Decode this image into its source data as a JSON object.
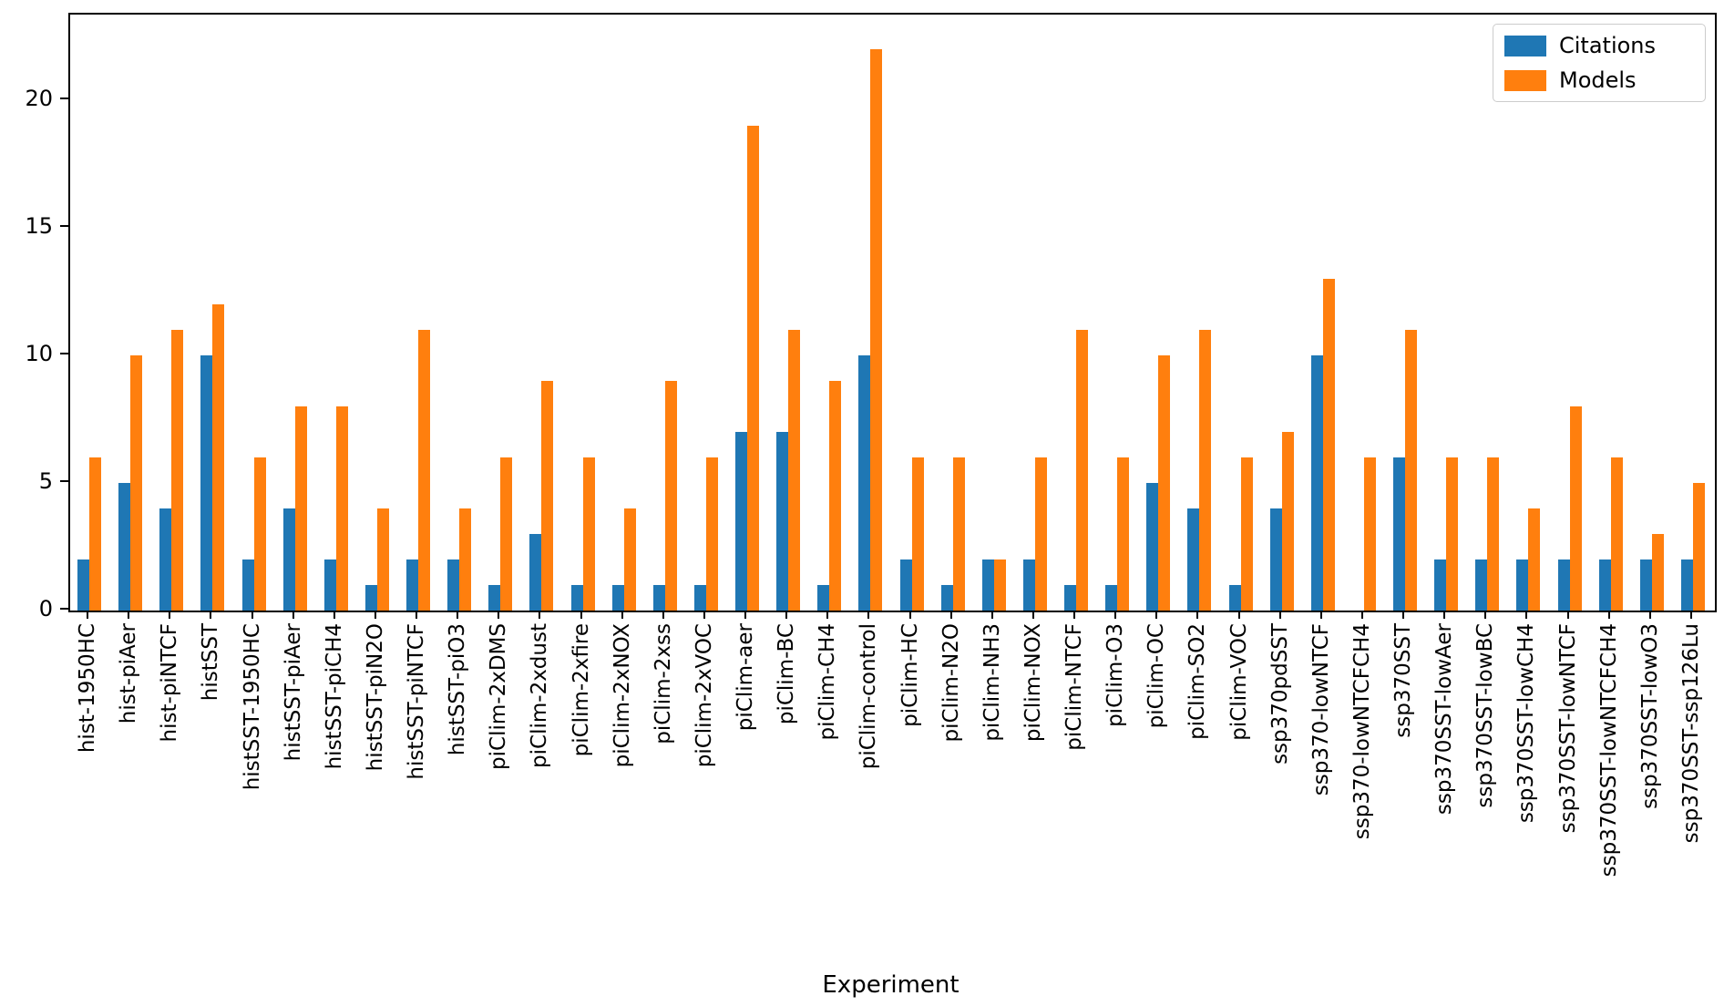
{
  "chart_data": {
    "type": "bar",
    "title": "",
    "xlabel": "Experiment",
    "ylabel": "",
    "grid": false,
    "legend_position": "upper right",
    "yticks": [
      0,
      5,
      10,
      15,
      20
    ],
    "ylim": [
      0,
      23.36
    ],
    "categories": [
      "hist-1950HC",
      "hist-piAer",
      "hist-piNTCF",
      "histSST",
      "histSST-1950HC",
      "histSST-piAer",
      "histSST-piCH4",
      "histSST-piN2O",
      "histSST-piNTCF",
      "histSST-piO3",
      "piClim-2xDMS",
      "piClim-2xdust",
      "piClim-2xfire",
      "piClim-2xNOX",
      "piClim-2xss",
      "piClim-2xVOC",
      "piClim-aer",
      "piClim-BC",
      "piClim-CH4",
      "piClim-control",
      "piClim-HC",
      "piClim-N2O",
      "piClim-NH3",
      "piClim-NOX",
      "piClim-NTCF",
      "piClim-O3",
      "piClim-OC",
      "piClim-SO2",
      "piClim-VOC",
      "ssp370pdSST",
      "ssp370-lowNTCF",
      "ssp370-lowNTCFCH4",
      "ssp370SST",
      "ssp370SST-lowAer",
      "ssp370SST-lowBC",
      "ssp370SST-lowCH4",
      "ssp370SST-lowNTCF",
      "ssp370SST-lowNTCFCH4",
      "ssp370SST-lowO3",
      "ssp370SST-ssp126Lu"
    ],
    "series": [
      {
        "name": "Citations",
        "color": "#1f77b4",
        "values": [
          2,
          5,
          4,
          10,
          2,
          4,
          2,
          1,
          2,
          2,
          1,
          3,
          1,
          1,
          1,
          1,
          7,
          7,
          1,
          10,
          2,
          1,
          2,
          2,
          1,
          1,
          5,
          4,
          1,
          4,
          10,
          0,
          6,
          2,
          2,
          2,
          2,
          2,
          2,
          2
        ]
      },
      {
        "name": "Models",
        "color": "#ff7f0e",
        "values": [
          6,
          10,
          11,
          12,
          6,
          8,
          8,
          4,
          11,
          4,
          6,
          9,
          6,
          4,
          9,
          6,
          19,
          11,
          9,
          22,
          6,
          6,
          2,
          6,
          11,
          6,
          10,
          11,
          6,
          7,
          13,
          6,
          11,
          6,
          6,
          4,
          8,
          6,
          3,
          5
        ]
      }
    ]
  }
}
